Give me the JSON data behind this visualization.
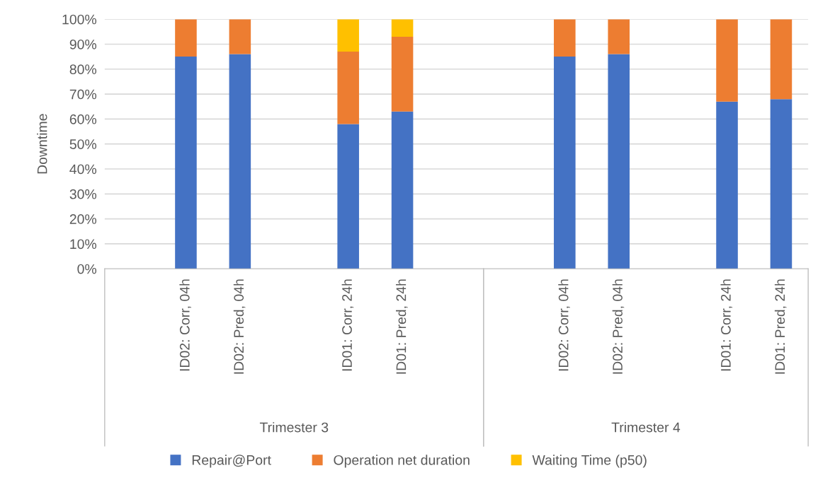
{
  "chart_data": {
    "type": "bar",
    "stacked": true,
    "ylabel": "Downtime",
    "categories": [
      null,
      "ID02: Corr, 04h",
      "ID02: Pred, 04h",
      null,
      "ID01: Corr, 24h",
      "ID01: Pred, 24h",
      null,
      null,
      "ID02: Corr, 04h",
      "ID02: Pred, 04h",
      null,
      "ID01: Corr, 24h",
      "ID01: Pred, 24h"
    ],
    "series": [
      {
        "name": "Repair@Port",
        "color": "#4472c4",
        "values": [
          null,
          85,
          86,
          null,
          58,
          63,
          null,
          null,
          85,
          86,
          null,
          67,
          68
        ]
      },
      {
        "name": "Operation net duration",
        "color": "#ed7d31",
        "values": [
          null,
          15,
          14,
          null,
          29,
          30,
          null,
          null,
          15,
          14,
          null,
          33,
          32
        ]
      },
      {
        "name": "Waiting Time (p50)",
        "color": "#ffc000",
        "values": [
          null,
          null,
          null,
          null,
          13,
          7,
          null,
          null,
          null,
          null,
          null,
          null,
          null
        ]
      }
    ],
    "ylim": [
      0,
      100
    ],
    "yticks": [
      {
        "value": 0,
        "label": "0%"
      },
      {
        "value": 10,
        "label": "10%"
      },
      {
        "value": 20,
        "label": "20%"
      },
      {
        "value": 30,
        "label": "30%"
      },
      {
        "value": 40,
        "label": "40%"
      },
      {
        "value": 50,
        "label": "50%"
      },
      {
        "value": 60,
        "label": "60%"
      },
      {
        "value": 70,
        "label": "70%"
      },
      {
        "value": 80,
        "label": "80%"
      },
      {
        "value": 90,
        "label": "90%"
      },
      {
        "value": 100,
        "label": "100%"
      }
    ],
    "grid": "y",
    "legend": "bottom",
    "annotations": [
      "Trimester 3",
      "Trimester 4"
    ]
  }
}
